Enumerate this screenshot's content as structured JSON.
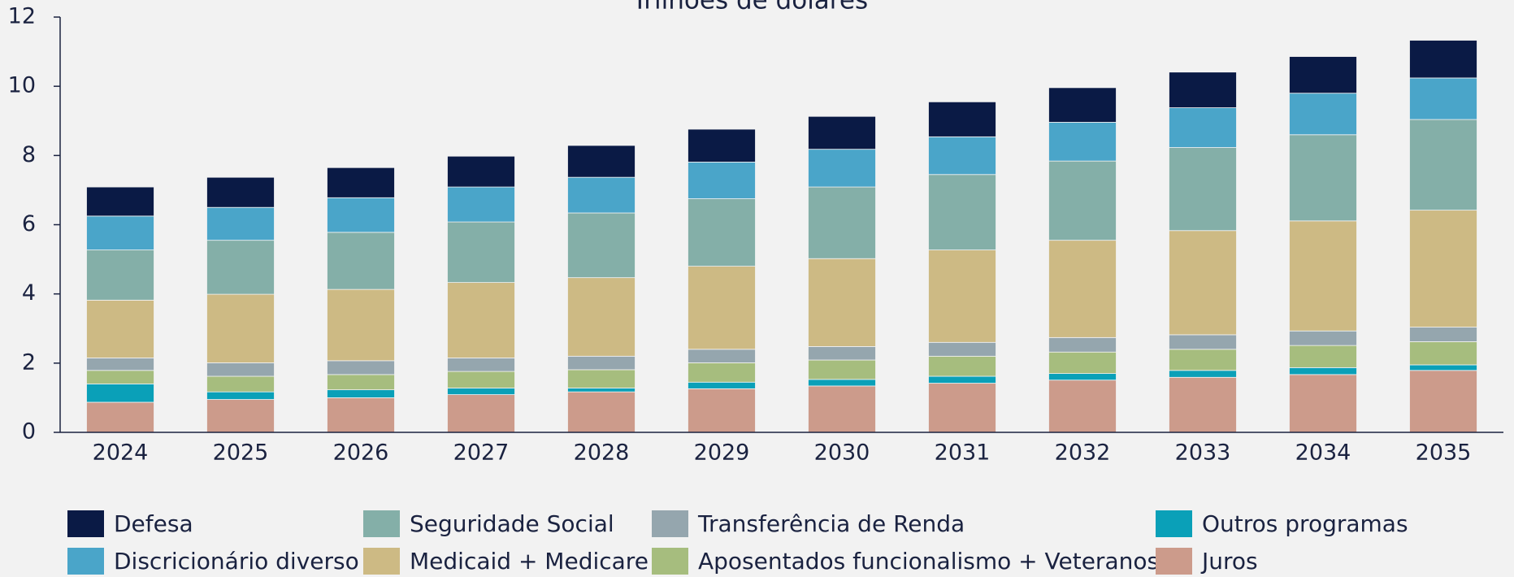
{
  "chart_data": {
    "type": "stacked_bar",
    "title": "Trilhões de dólares",
    "categories": [
      "2024",
      "2025",
      "2026",
      "2027",
      "2028",
      "2029",
      "2030",
      "2031",
      "2032",
      "2033",
      "2034",
      "2035"
    ],
    "series": [
      {
        "name": "Defesa",
        "color": "#0a1a45",
        "values": [
          0.84,
          0.87,
          0.87,
          0.89,
          0.92,
          0.95,
          0.95,
          1.01,
          1.0,
          1.03,
          1.06,
          1.09
        ]
      },
      {
        "name": "Discricionário diverso",
        "color": "#4aa5c9",
        "values": [
          0.98,
          0.95,
          1.0,
          1.01,
          1.03,
          1.06,
          1.09,
          1.09,
          1.12,
          1.15,
          1.2,
          1.2
        ]
      },
      {
        "name": "Seguridade Social",
        "color": "#84afa8",
        "values": [
          1.45,
          1.56,
          1.65,
          1.75,
          1.87,
          1.95,
          2.07,
          2.18,
          2.29,
          2.4,
          2.49,
          2.62
        ]
      },
      {
        "name": "Medicaid + Medicare",
        "color": "#cdba84",
        "values": [
          1.67,
          1.98,
          2.06,
          2.18,
          2.27,
          2.4,
          2.54,
          2.67,
          2.81,
          3.01,
          3.18,
          3.38
        ]
      },
      {
        "name": "Transferência de Renda",
        "color": "#95a6ae",
        "values": [
          0.36,
          0.39,
          0.4,
          0.39,
          0.39,
          0.39,
          0.39,
          0.4,
          0.42,
          0.42,
          0.42,
          0.42
        ]
      },
      {
        "name": "Aposentados funcionalismo + Veteranos",
        "color": "#a6bd7e",
        "values": [
          0.39,
          0.45,
          0.44,
          0.48,
          0.53,
          0.56,
          0.56,
          0.58,
          0.62,
          0.61,
          0.64,
          0.67
        ]
      },
      {
        "name": "Outros programas",
        "color": "#0aa0b8",
        "values": [
          0.53,
          0.22,
          0.23,
          0.19,
          0.11,
          0.19,
          0.19,
          0.2,
          0.19,
          0.2,
          0.2,
          0.16
        ]
      },
      {
        "name": "Juros",
        "color": "#cc9b8b",
        "values": [
          0.87,
          0.95,
          1.0,
          1.09,
          1.17,
          1.26,
          1.34,
          1.42,
          1.51,
          1.59,
          1.67,
          1.79
        ]
      }
    ],
    "ylim": [
      0,
      12
    ],
    "yticks": [
      0,
      2,
      4,
      6,
      8,
      10,
      12
    ]
  }
}
